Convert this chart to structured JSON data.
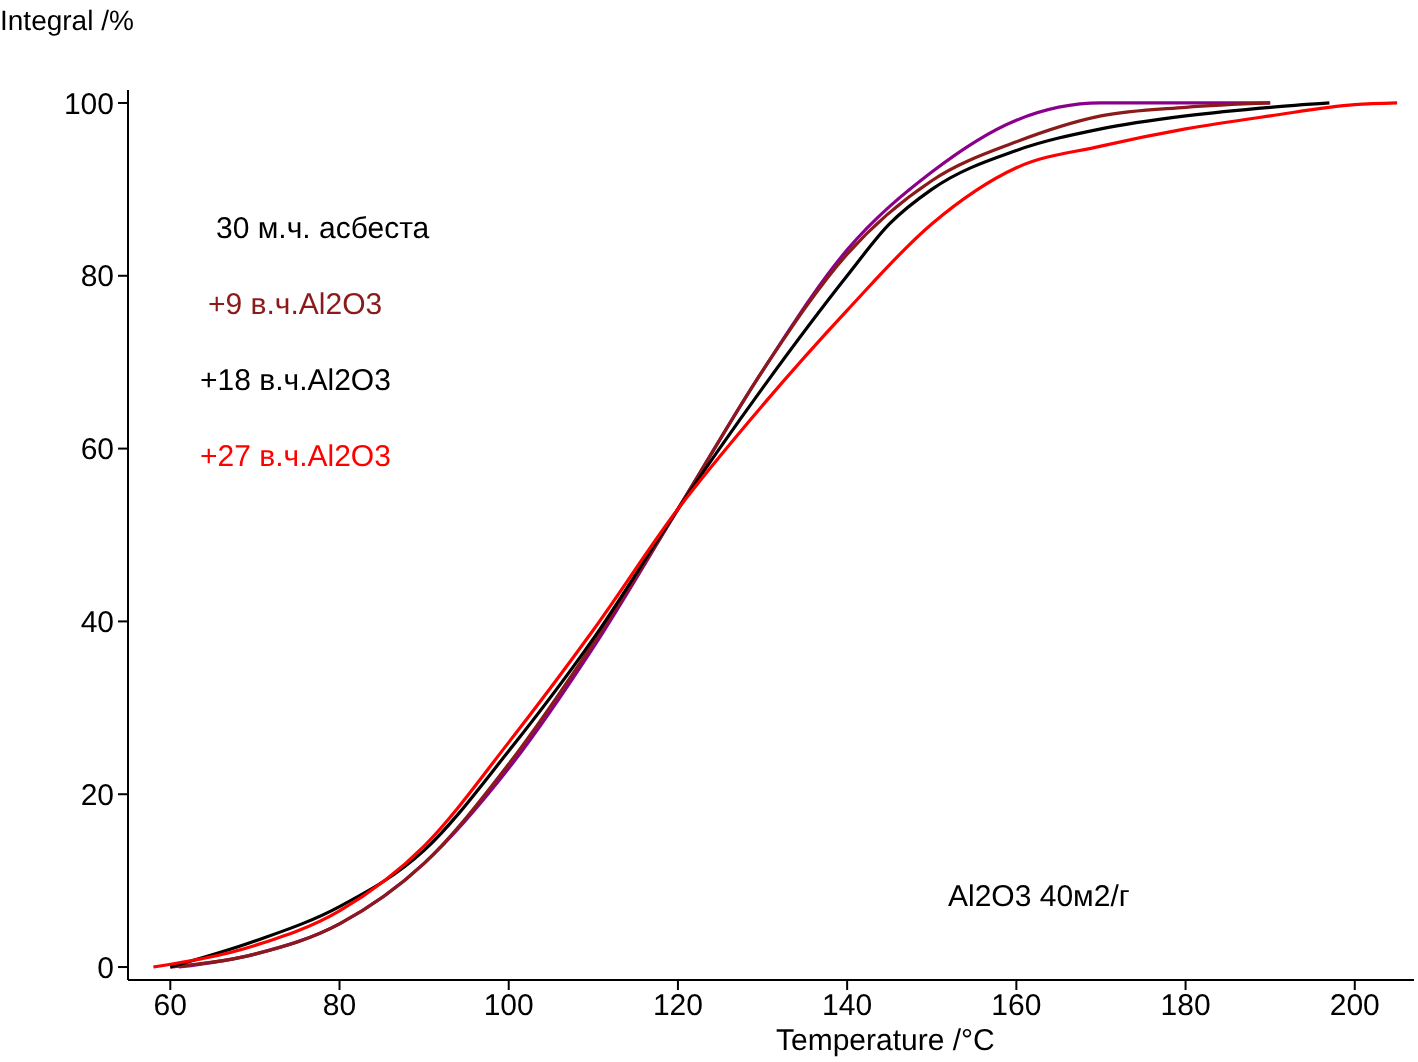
{
  "chart_data": {
    "type": "line",
    "xlabel": "Temperature /°C",
    "ylabel": "Integral /%",
    "legend_title": "30 м.ч. асбеста",
    "legend": "top left",
    "grid": false,
    "marker": "none",
    "line_style": "solid",
    "xlim": [
      55,
      207
    ],
    "ylim": [
      -1.5,
      101.5
    ],
    "xticks": [
      60,
      80,
      100,
      120,
      140,
      160,
      180,
      200
    ],
    "yticks": [
      0,
      20,
      40,
      60,
      80,
      100
    ],
    "annotations": [
      "Al2O3 40м2/г"
    ],
    "series": [
      {
        "color": "#8b008b",
        "x": [
          61,
          70,
          80,
          90,
          100,
          110,
          120,
          130,
          140,
          150,
          160,
          170,
          180,
          190
        ],
        "values": [
          0,
          1.5,
          5,
          12,
          23,
          37,
          53,
          69,
          83,
          92,
          98,
          100,
          100,
          100
        ]
      },
      {
        "name": "+9 в.ч.Al2O3",
        "color": "#8b1a1a",
        "x": [
          60,
          70,
          80,
          90,
          100,
          110,
          120,
          130,
          140,
          150,
          160,
          170,
          180,
          190
        ],
        "values": [
          0,
          1.5,
          5,
          12,
          23.5,
          37.5,
          53,
          69,
          82.5,
          91,
          95.5,
          98.5,
          99.5,
          100
        ]
      },
      {
        "name": "+18 в.ч.Al2O3",
        "color": "#000000",
        "x": [
          60,
          70,
          80,
          90,
          100,
          110,
          120,
          130,
          140,
          145,
          150,
          160,
          170,
          180,
          190,
          197
        ],
        "values": [
          0,
          3,
          7,
          13.5,
          25,
          38,
          53,
          67,
          80,
          86,
          90,
          94.5,
          97,
          98.5,
          99.5,
          100
        ]
      },
      {
        "name": "+27 в.ч.Al2O3",
        "color": "#ff0000",
        "x": [
          58,
          70,
          80,
          90,
          100,
          110,
          120,
          130,
          140,
          150,
          160,
          170,
          180,
          190,
          200,
          205
        ],
        "values": [
          0,
          2.5,
          6.5,
          14,
          26,
          39,
          53,
          65,
          76,
          86,
          92.5,
          95,
          97,
          98.5,
          99.8,
          100
        ]
      }
    ]
  }
}
